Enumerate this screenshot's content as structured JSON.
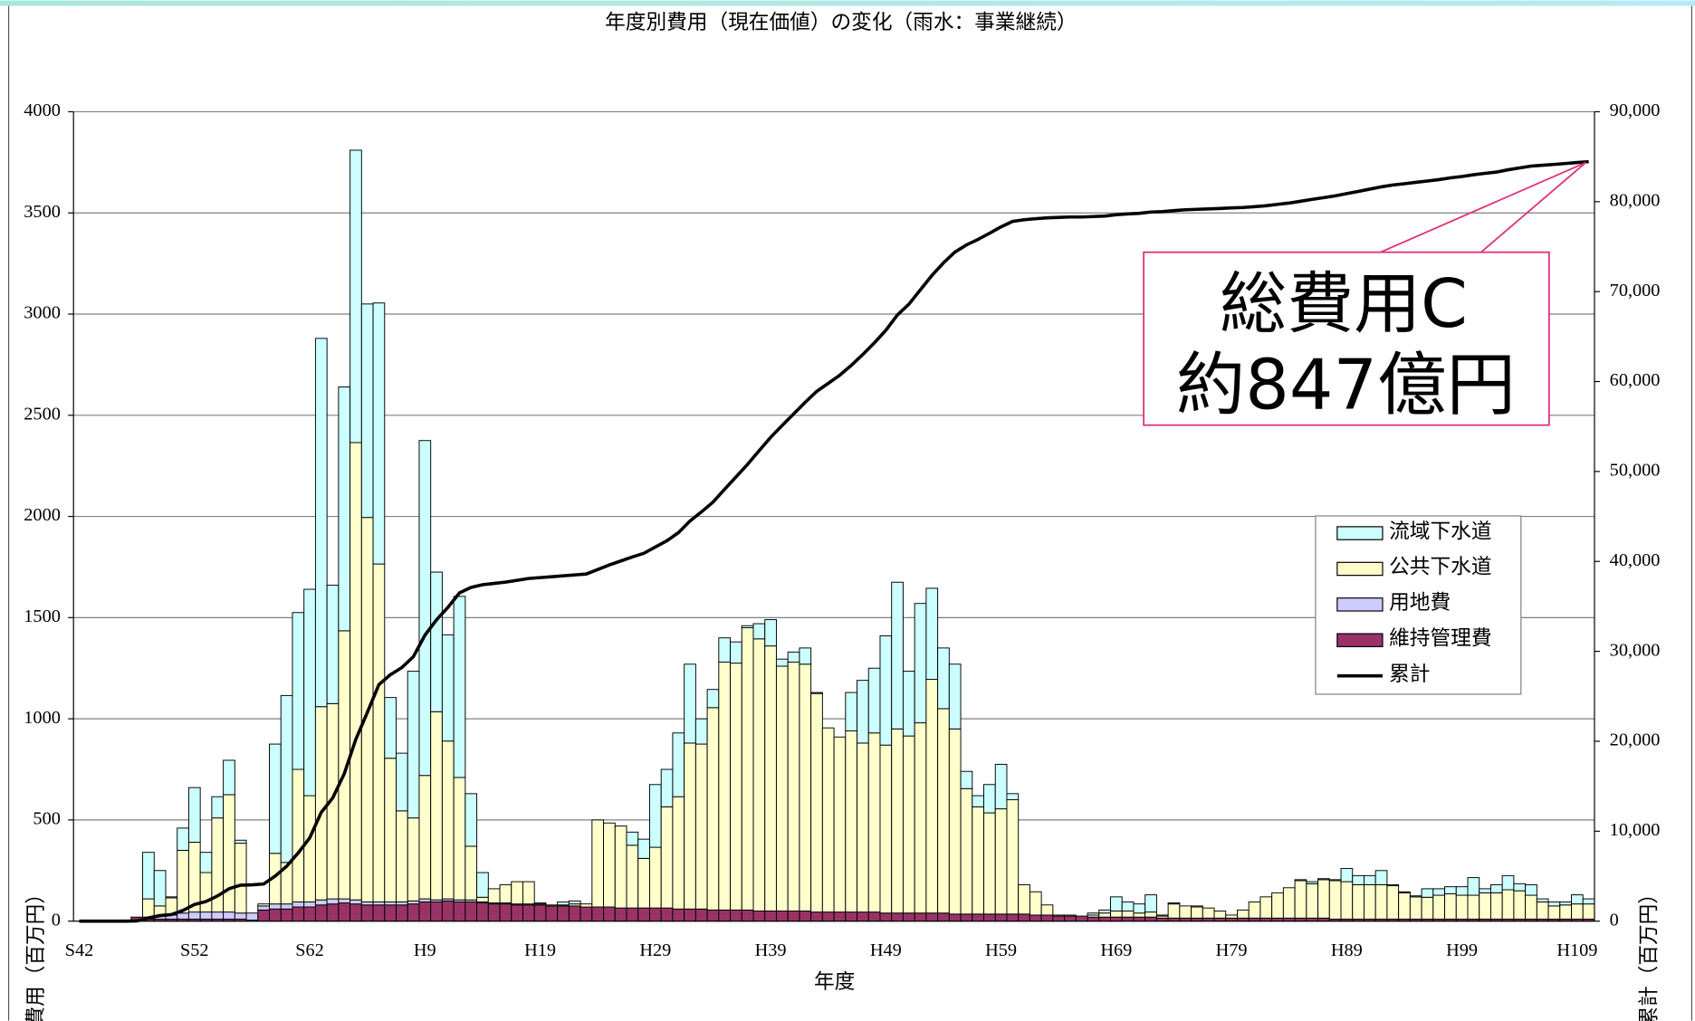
{
  "chart_data": {
    "type": "bar",
    "title": "年度別費用（現在価値）の変化（雨水：事業継続）",
    "x_label": "年度",
    "y_label": "費用（百万円）",
    "y2_label": "累計（百万円）",
    "annotations": [
      "総費用C",
      "約847億円"
    ],
    "categories": [
      "S42",
      null,
      null,
      null,
      null,
      null,
      null,
      null,
      null,
      null,
      "S52",
      null,
      null,
      null,
      null,
      null,
      null,
      null,
      null,
      null,
      "S62",
      null,
      null,
      null,
      null,
      null,
      null,
      null,
      null,
      null,
      "H9",
      null,
      null,
      null,
      null,
      null,
      null,
      null,
      null,
      null,
      "H19",
      null,
      null,
      null,
      null,
      null,
      null,
      null,
      null,
      null,
      "H29",
      null,
      null,
      null,
      null,
      null,
      null,
      null,
      null,
      null,
      "H39",
      null,
      null,
      null,
      null,
      null,
      null,
      null,
      null,
      null,
      "H49",
      null,
      null,
      null,
      null,
      null,
      null,
      null,
      null,
      null,
      "H59",
      null,
      null,
      null,
      null,
      null,
      null,
      null,
      null,
      null,
      "H69",
      null,
      null,
      null,
      null,
      null,
      null,
      null,
      null,
      null,
      "H79",
      null,
      null,
      null,
      null,
      null,
      null,
      null,
      null,
      null,
      "H89",
      null,
      null,
      null,
      null,
      null,
      null,
      null,
      null,
      null,
      "H99",
      null,
      null,
      null,
      null,
      null,
      null,
      null,
      null,
      null,
      "H109",
      null
    ],
    "ylim": [
      0,
      4000
    ],
    "yticks": [
      0,
      500,
      1000,
      1500,
      2000,
      2500,
      3000,
      3500,
      4000
    ],
    "y2lim": [
      0,
      90000
    ],
    "y2ticks": [
      0,
      {
        "value": 10000,
        "label": "10,000"
      },
      {
        "value": 20000,
        "label": "20,000"
      },
      {
        "value": 30000,
        "label": "30,000"
      },
      {
        "value": 40000,
        "label": "40,000"
      },
      {
        "value": 50000,
        "label": "50,000"
      },
      {
        "value": 60000,
        "label": "60,000"
      },
      {
        "value": 70000,
        "label": "70,000"
      },
      {
        "value": 80000,
        "label": "80,000"
      },
      {
        "value": 90000,
        "label": "90,000"
      }
    ],
    "grid": true,
    "legend": "right",
    "series": [
      {
        "name": "流域下水道",
        "type": "bar",
        "color": "#ccffff",
        "values": [
          0,
          0,
          0,
          0,
          0,
          0,
          230,
          175,
          5,
          110,
          270,
          100,
          105,
          170,
          15,
          0,
          0,
          540,
          825,
          775,
          1020,
          1820,
          585,
          1205,
          1445,
          1055,
          1290,
          300,
          285,
          725,
          1655,
          690,
          525,
          895,
          260,
          122,
          0,
          0,
          0,
          0,
          0,
          0,
          15,
          15,
          0,
          0,
          0,
          0,
          65,
          95,
          310,
          185,
          315,
          390,
          125,
          90,
          120,
          105,
          10,
          75,
          130,
          35,
          50,
          80,
          5,
          0,
          0,
          190,
          310,
          320,
          540,
          725,
          320,
          590,
          450,
          300,
          320,
          85,
          55,
          140,
          220,
          30,
          0,
          0,
          0,
          0,
          0,
          0,
          10,
          15,
          70,
          45,
          45,
          85,
          5,
          5,
          0,
          5,
          0,
          0,
          0,
          0,
          0,
          0,
          0,
          0,
          5,
          10,
          5,
          5,
          65,
          45,
          45,
          70,
          5,
          5,
          5,
          42,
          32,
          35,
          42,
          87,
          20,
          40,
          70,
          35,
          52,
          15,
          20,
          15,
          45,
          25
        ]
      },
      {
        "name": "公共下水道",
        "type": "bar",
        "color": "#ffffcc",
        "values": [
          0,
          0,
          0,
          0,
          0,
          0,
          90,
          50,
          85,
          310,
          345,
          195,
          465,
          580,
          345,
          0,
          10,
          250,
          205,
          655,
          525,
          955,
          965,
          1325,
          2260,
          1900,
          1670,
          710,
          450,
          410,
          610,
          930,
          780,
          605,
          265,
          23,
          70,
          90,
          110,
          110,
          5,
          5,
          5,
          10,
          15,
          430,
          415,
          405,
          310,
          245,
          300,
          500,
          555,
          820,
          815,
          1000,
          1225,
          1220,
          1395,
          1345,
          1310,
          1210,
          1230,
          1220,
          1080,
          910,
          865,
          895,
          835,
          885,
          830,
          910,
          875,
          940,
          1155,
          1010,
          915,
          620,
          530,
          500,
          520,
          565,
          145,
          115,
          50,
          5,
          5,
          0,
          10,
          20,
          30,
          30,
          20,
          25,
          10,
          70,
          60,
          55,
          50,
          35,
          15,
          40,
          80,
          105,
          125,
          150,
          185,
          170,
          190,
          190,
          185,
          170,
          170,
          170,
          165,
          130,
          110,
          108,
          118,
          125,
          118,
          118,
          130,
          130,
          145,
          140,
          118,
          85,
          65,
          70,
          75,
          75
        ]
      },
      {
        "name": "用地費",
        "type": "bar",
        "color": "#ccccff",
        "values": [
          0,
          0,
          0,
          0,
          0,
          0,
          10,
          15,
          20,
          30,
          35,
          35,
          35,
          35,
          30,
          35,
          20,
          25,
          25,
          25,
          25,
          25,
          25,
          20,
          20,
          15,
          15,
          15,
          15,
          15,
          15,
          10,
          10,
          10,
          10,
          5,
          5,
          5,
          5,
          5,
          5,
          0,
          0,
          0,
          0,
          0,
          0,
          0,
          0,
          0,
          0,
          0,
          0,
          0,
          0,
          0,
          0,
          0,
          0,
          0,
          0,
          0,
          0,
          0,
          0,
          0,
          0,
          0,
          0,
          0,
          0,
          0,
          0,
          0,
          0,
          0,
          0,
          0,
          0,
          0,
          0,
          0,
          0,
          0,
          0,
          0,
          0,
          0,
          0,
          0,
          0,
          0,
          0,
          0,
          0,
          0,
          0,
          0,
          0,
          0,
          0,
          0,
          0,
          0,
          0,
          0,
          0,
          0,
          0,
          0,
          0,
          0,
          0,
          0,
          0,
          0,
          0,
          0,
          0,
          0,
          0,
          0,
          0,
          0,
          0,
          0,
          0,
          0,
          0,
          0,
          0,
          0
        ]
      },
      {
        "name": "維持管理費",
        "type": "bar",
        "color": "#993366",
        "values": [
          0,
          0,
          0,
          0,
          0,
          20,
          10,
          10,
          10,
          10,
          10,
          10,
          10,
          10,
          10,
          5,
          55,
          60,
          60,
          70,
          70,
          80,
          85,
          90,
          85,
          80,
          80,
          80,
          80,
          85,
          95,
          95,
          100,
          95,
          95,
          90,
          85,
          85,
          80,
          80,
          80,
          75,
          75,
          75,
          70,
          70,
          70,
          65,
          65,
          65,
          65,
          65,
          60,
          60,
          60,
          55,
          55,
          55,
          55,
          50,
          50,
          50,
          50,
          50,
          45,
          45,
          45,
          45,
          45,
          45,
          40,
          40,
          40,
          40,
          40,
          40,
          35,
          35,
          35,
          35,
          35,
          35,
          35,
          30,
          30,
          25,
          25,
          25,
          20,
          20,
          20,
          20,
          20,
          20,
          15,
          15,
          15,
          15,
          15,
          15,
          15,
          15,
          15,
          15,
          15,
          15,
          15,
          15,
          15,
          10,
          10,
          10,
          10,
          10,
          10,
          10,
          10,
          10,
          10,
          10,
          10,
          10,
          10,
          10,
          10,
          10,
          10,
          10,
          10,
          10,
          10,
          10
        ]
      },
      {
        "name": "累計",
        "type": "line",
        "axis": "y2",
        "color": "#000000",
        "values": [
          0,
          0,
          0,
          0,
          0,
          20,
          360,
          610,
          730,
          1190,
          1850,
          2190,
          2800,
          3600,
          4000,
          4040,
          4130,
          5000,
          6100,
          7600,
          9250,
          12100,
          13700,
          16400,
          20200,
          23200,
          26300,
          27400,
          28200,
          29400,
          31800,
          33500,
          34900,
          36500,
          37100,
          37400,
          37550,
          37700,
          37900,
          38100,
          38200,
          38300,
          38400,
          38500,
          38600,
          39100,
          39600,
          40050,
          40500,
          40900,
          41600,
          42300,
          43200,
          44500,
          45500,
          46600,
          48000,
          49400,
          50800,
          52300,
          53800,
          55100,
          56400,
          57700,
          58900,
          59800,
          60700,
          61800,
          63000,
          64300,
          65700,
          67400,
          68600,
          70200,
          71800,
          73200,
          74400,
          75200,
          75800,
          76500,
          77200,
          77800,
          78000,
          78100,
          78200,
          78250,
          78300,
          78300,
          78350,
          78400,
          78550,
          78650,
          78700,
          78850,
          78900,
          79000,
          79100,
          79150,
          79200,
          79250,
          79300,
          79350,
          79450,
          79550,
          79700,
          79850,
          80050,
          80250,
          80450,
          80650,
          80900,
          81150,
          81400,
          81650,
          81850,
          82000,
          82150,
          82300,
          82450,
          82650,
          82800,
          83000,
          83150,
          83300,
          83550,
          83750,
          83950,
          84050,
          84150,
          84250,
          84350,
          84450
        ]
      }
    ]
  }
}
